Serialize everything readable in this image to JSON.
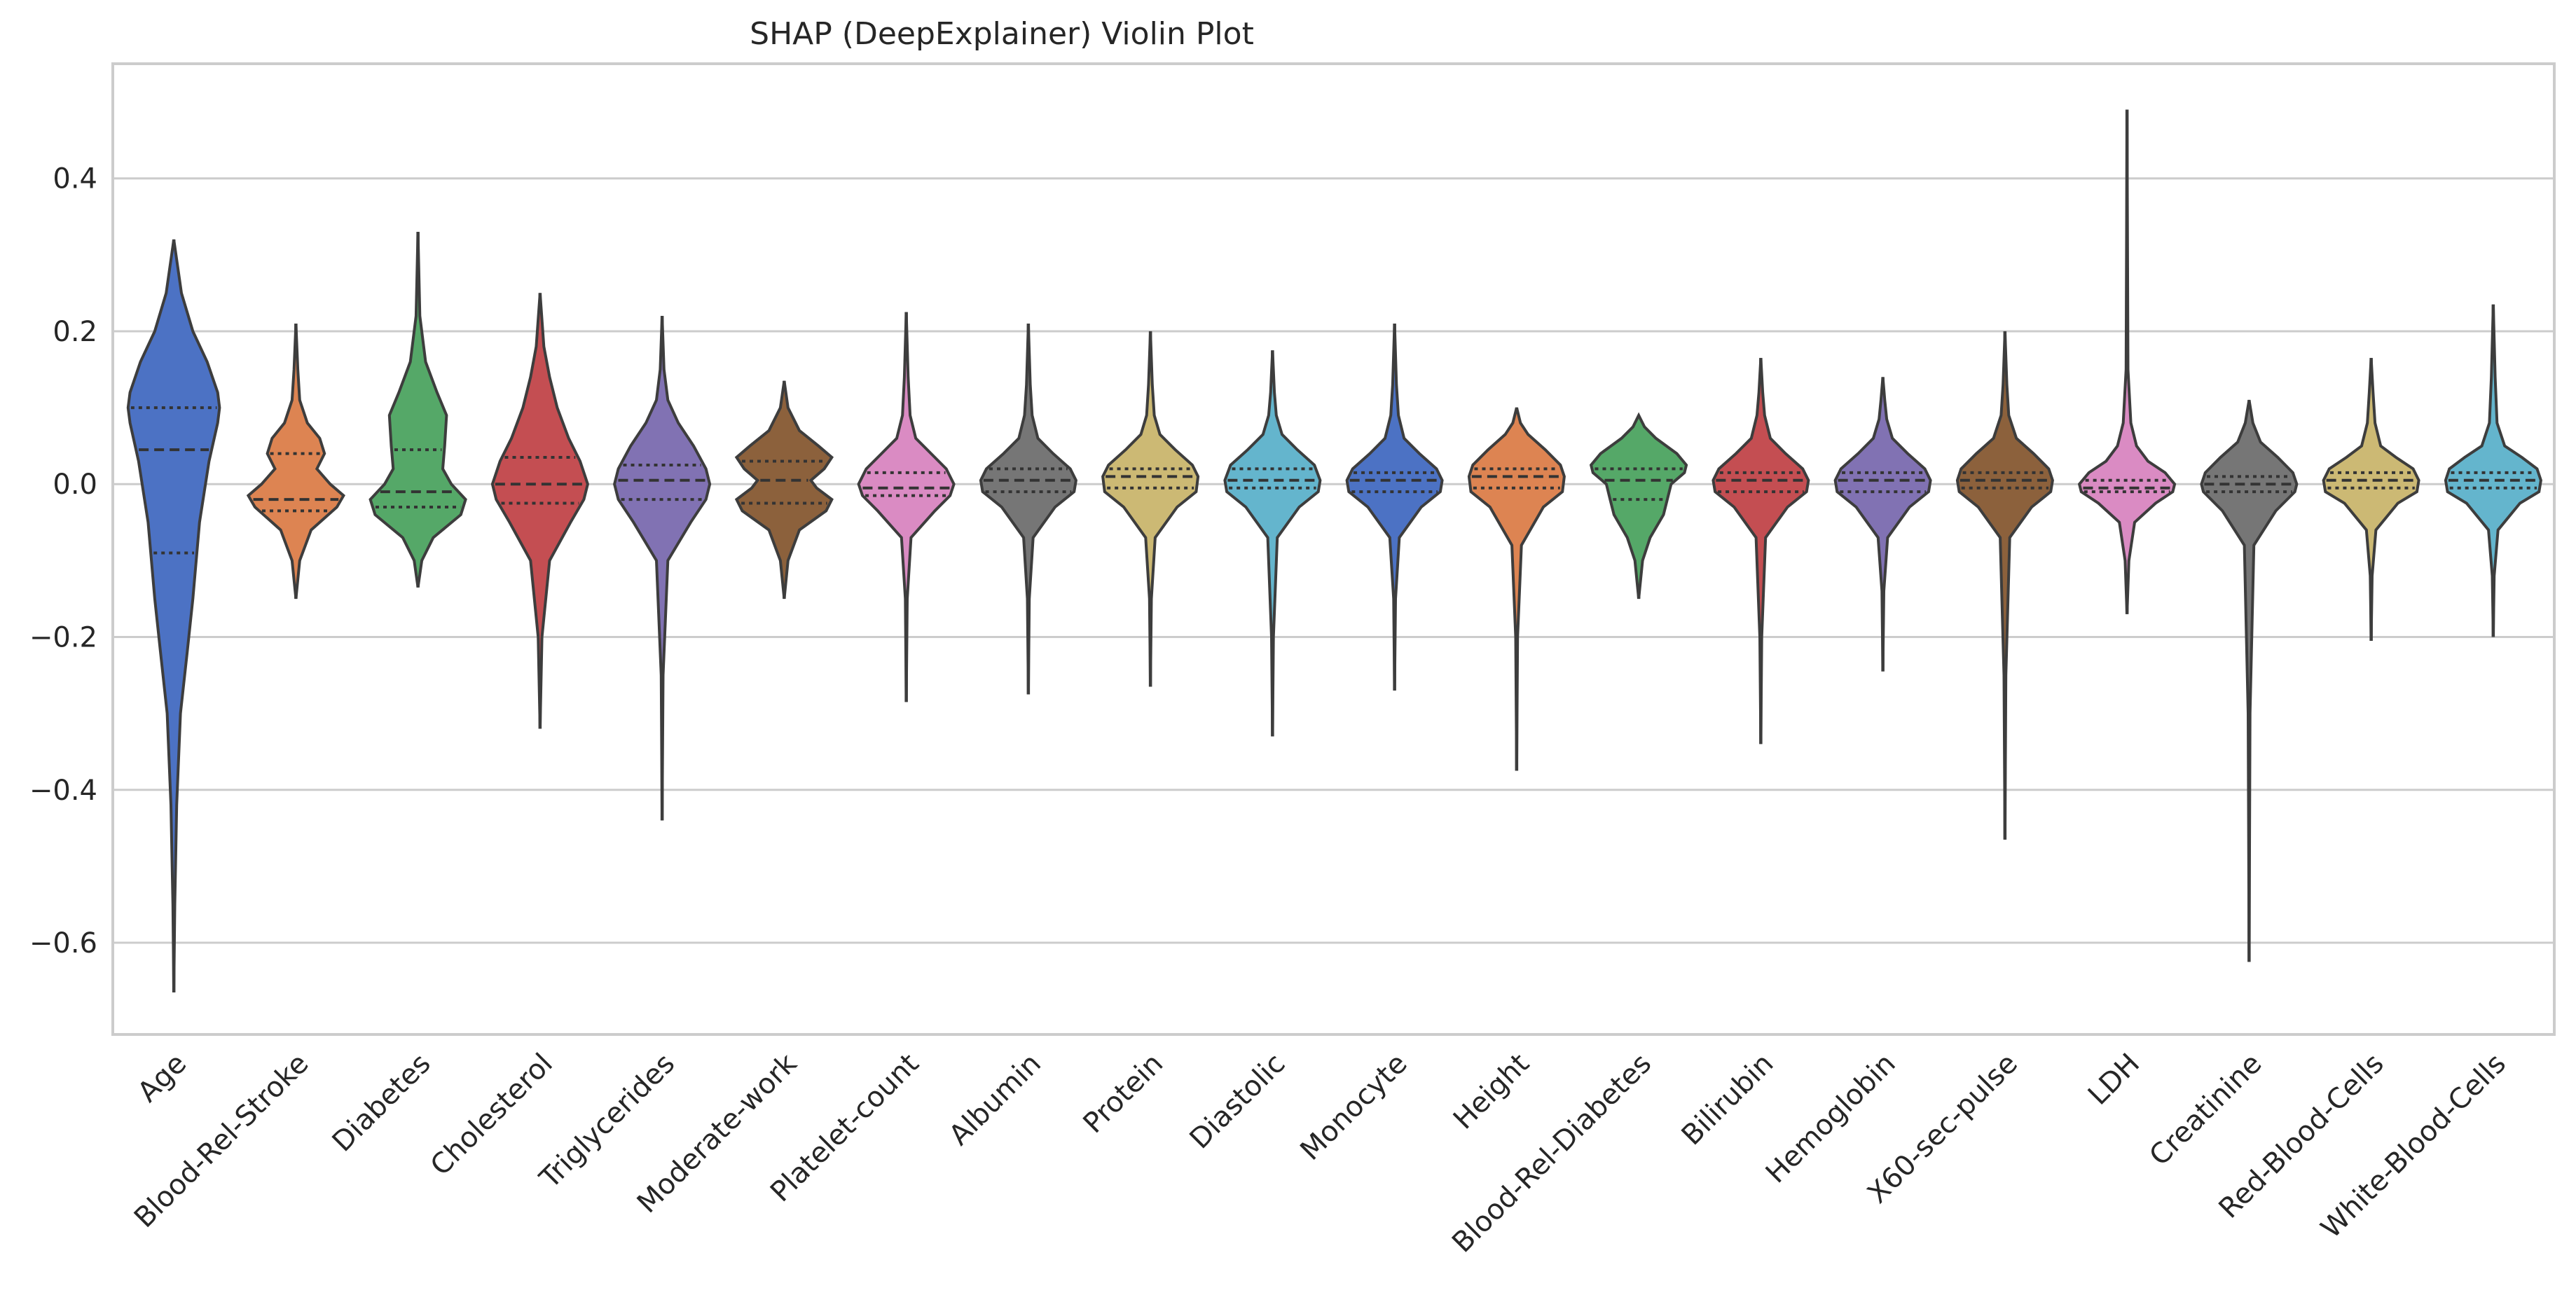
{
  "chart_data": {
    "type": "violin",
    "title": "SHAP (DeepExplainer) Violin Plot",
    "xlabel": "",
    "ylabel": "",
    "ylim": [
      -0.72,
      0.55
    ],
    "yticks": [
      0.4,
      0.2,
      0.0,
      -0.2,
      -0.4,
      -0.6
    ],
    "ytick_labels": [
      "0.4",
      "0.2",
      "0.0",
      "−0.2",
      "−0.4",
      "−0.6"
    ],
    "grid": true,
    "series": [
      {
        "name": "Age",
        "color": "#4c72c4",
        "min": -0.665,
        "max": 0.32,
        "q1": -0.09,
        "median": 0.045,
        "q3": 0.1,
        "profile": [
          [
            -0.665,
            0
          ],
          [
            -0.55,
            0.01
          ],
          [
            -0.42,
            0.03
          ],
          [
            -0.3,
            0.07
          ],
          [
            -0.22,
            0.14
          ],
          [
            -0.15,
            0.2
          ],
          [
            -0.05,
            0.27
          ],
          [
            0.03,
            0.37
          ],
          [
            0.08,
            0.46
          ],
          [
            0.1,
            0.48
          ],
          [
            0.12,
            0.46
          ],
          [
            0.16,
            0.35
          ],
          [
            0.2,
            0.2
          ],
          [
            0.25,
            0.08
          ],
          [
            0.32,
            0
          ]
        ]
      },
      {
        "name": "Blood-Rel-Stroke",
        "color": "#dd8452",
        "min": -0.15,
        "max": 0.21,
        "q1": -0.035,
        "median": -0.02,
        "q3": 0.04,
        "profile": [
          [
            -0.15,
            0
          ],
          [
            -0.1,
            0.04
          ],
          [
            -0.06,
            0.16
          ],
          [
            -0.03,
            0.43
          ],
          [
            -0.015,
            0.5
          ],
          [
            0.0,
            0.36
          ],
          [
            0.02,
            0.22
          ],
          [
            0.04,
            0.3
          ],
          [
            0.06,
            0.25
          ],
          [
            0.08,
            0.12
          ],
          [
            0.11,
            0.04
          ],
          [
            0.15,
            0.02
          ],
          [
            0.21,
            0
          ]
        ]
      },
      {
        "name": "Diabetes",
        "color": "#55a868",
        "min": -0.135,
        "max": 0.33,
        "q1": -0.03,
        "median": -0.01,
        "q3": 0.045,
        "profile": [
          [
            -0.135,
            0
          ],
          [
            -0.1,
            0.04
          ],
          [
            -0.07,
            0.16
          ],
          [
            -0.04,
            0.45
          ],
          [
            -0.02,
            0.5
          ],
          [
            0.0,
            0.35
          ],
          [
            0.02,
            0.26
          ],
          [
            0.05,
            0.28
          ],
          [
            0.09,
            0.3
          ],
          [
            0.12,
            0.2
          ],
          [
            0.16,
            0.08
          ],
          [
            0.22,
            0.02
          ],
          [
            0.33,
            0
          ]
        ]
      },
      {
        "name": "Cholesterol",
        "color": "#c44e52",
        "min": -0.32,
        "max": 0.25,
        "q1": -0.025,
        "median": 0.0,
        "q3": 0.035,
        "profile": [
          [
            -0.32,
            0
          ],
          [
            -0.2,
            0.02
          ],
          [
            -0.1,
            0.1
          ],
          [
            -0.05,
            0.32
          ],
          [
            -0.02,
            0.46
          ],
          [
            0.0,
            0.5
          ],
          [
            0.03,
            0.42
          ],
          [
            0.06,
            0.3
          ],
          [
            0.1,
            0.18
          ],
          [
            0.14,
            0.1
          ],
          [
            0.18,
            0.04
          ],
          [
            0.25,
            0
          ]
        ]
      },
      {
        "name": "Triglycerides",
        "color": "#8172b3",
        "min": -0.44,
        "max": 0.22,
        "q1": -0.02,
        "median": 0.005,
        "q3": 0.025,
        "profile": [
          [
            -0.44,
            0
          ],
          [
            -0.25,
            0.01
          ],
          [
            -0.1,
            0.06
          ],
          [
            -0.05,
            0.3
          ],
          [
            -0.02,
            0.46
          ],
          [
            0.0,
            0.5
          ],
          [
            0.02,
            0.46
          ],
          [
            0.05,
            0.33
          ],
          [
            0.08,
            0.17
          ],
          [
            0.11,
            0.06
          ],
          [
            0.15,
            0.02
          ],
          [
            0.22,
            0
          ]
        ]
      },
      {
        "name": "Moderate-work",
        "color": "#8c613c",
        "min": -0.15,
        "max": 0.135,
        "q1": -0.025,
        "median": 0.005,
        "q3": 0.03,
        "profile": [
          [
            -0.15,
            0
          ],
          [
            -0.1,
            0.04
          ],
          [
            -0.06,
            0.16
          ],
          [
            -0.035,
            0.44
          ],
          [
            -0.02,
            0.5
          ],
          [
            -0.005,
            0.34
          ],
          [
            0.005,
            0.28
          ],
          [
            0.02,
            0.42
          ],
          [
            0.035,
            0.5
          ],
          [
            0.05,
            0.36
          ],
          [
            0.07,
            0.16
          ],
          [
            0.1,
            0.04
          ],
          [
            0.135,
            0
          ]
        ]
      },
      {
        "name": "Platelet-count",
        "color": "#da8bc3",
        "min": -0.285,
        "max": 0.225,
        "q1": -0.015,
        "median": -0.005,
        "q3": 0.015,
        "profile": [
          [
            -0.285,
            0
          ],
          [
            -0.15,
            0.01
          ],
          [
            -0.07,
            0.05
          ],
          [
            -0.035,
            0.3
          ],
          [
            -0.015,
            0.46
          ],
          [
            0.0,
            0.5
          ],
          [
            0.02,
            0.42
          ],
          [
            0.04,
            0.26
          ],
          [
            0.06,
            0.1
          ],
          [
            0.09,
            0.04
          ],
          [
            0.14,
            0.02
          ],
          [
            0.225,
            0
          ]
        ]
      },
      {
        "name": "Albumin",
        "color": "#767676",
        "min": -0.275,
        "max": 0.21,
        "q1": -0.01,
        "median": 0.005,
        "q3": 0.02,
        "profile": [
          [
            -0.275,
            0
          ],
          [
            -0.15,
            0.01
          ],
          [
            -0.07,
            0.05
          ],
          [
            -0.03,
            0.28
          ],
          [
            -0.01,
            0.48
          ],
          [
            0.005,
            0.5
          ],
          [
            0.02,
            0.44
          ],
          [
            0.04,
            0.26
          ],
          [
            0.06,
            0.1
          ],
          [
            0.09,
            0.04
          ],
          [
            0.13,
            0.02
          ],
          [
            0.21,
            0
          ]
        ]
      },
      {
        "name": "Protein",
        "color": "#ccb974",
        "min": -0.265,
        "max": 0.2,
        "q1": -0.005,
        "median": 0.01,
        "q3": 0.02,
        "profile": [
          [
            -0.265,
            0
          ],
          [
            -0.15,
            0.01
          ],
          [
            -0.07,
            0.05
          ],
          [
            -0.03,
            0.28
          ],
          [
            -0.01,
            0.48
          ],
          [
            0.01,
            0.5
          ],
          [
            0.025,
            0.44
          ],
          [
            0.045,
            0.26
          ],
          [
            0.065,
            0.1
          ],
          [
            0.09,
            0.04
          ],
          [
            0.13,
            0.02
          ],
          [
            0.2,
            0
          ]
        ]
      },
      {
        "name": "Diastolic",
        "color": "#64b5cd",
        "min": -0.33,
        "max": 0.175,
        "q1": -0.005,
        "median": 0.005,
        "q3": 0.02,
        "profile": [
          [
            -0.33,
            0
          ],
          [
            -0.2,
            0.01
          ],
          [
            -0.07,
            0.05
          ],
          [
            -0.03,
            0.28
          ],
          [
            -0.01,
            0.48
          ],
          [
            0.005,
            0.5
          ],
          [
            0.025,
            0.44
          ],
          [
            0.045,
            0.26
          ],
          [
            0.065,
            0.1
          ],
          [
            0.09,
            0.04
          ],
          [
            0.12,
            0.02
          ],
          [
            0.175,
            0
          ]
        ]
      },
      {
        "name": "Monocyte",
        "color": "#4c72c4",
        "min": -0.27,
        "max": 0.21,
        "q1": -0.01,
        "median": 0.005,
        "q3": 0.015,
        "profile": [
          [
            -0.27,
            0
          ],
          [
            -0.15,
            0.01
          ],
          [
            -0.07,
            0.05
          ],
          [
            -0.03,
            0.28
          ],
          [
            -0.01,
            0.48
          ],
          [
            0.005,
            0.5
          ],
          [
            0.02,
            0.44
          ],
          [
            0.04,
            0.26
          ],
          [
            0.06,
            0.1
          ],
          [
            0.09,
            0.04
          ],
          [
            0.13,
            0.02
          ],
          [
            0.21,
            0
          ]
        ]
      },
      {
        "name": "Height",
        "color": "#dd8452",
        "min": -0.375,
        "max": 0.1,
        "q1": -0.005,
        "median": 0.01,
        "q3": 0.02,
        "profile": [
          [
            -0.375,
            0
          ],
          [
            -0.2,
            0.01
          ],
          [
            -0.08,
            0.05
          ],
          [
            -0.03,
            0.28
          ],
          [
            -0.01,
            0.48
          ],
          [
            0.01,
            0.5
          ],
          [
            0.025,
            0.46
          ],
          [
            0.045,
            0.3
          ],
          [
            0.065,
            0.12
          ],
          [
            0.08,
            0.04
          ],
          [
            0.1,
            0
          ]
        ]
      },
      {
        "name": "Blood-Rel-Diabetes",
        "color": "#55a868",
        "min": -0.15,
        "max": 0.09,
        "q1": -0.02,
        "median": 0.005,
        "q3": 0.02,
        "profile": [
          [
            -0.15,
            0
          ],
          [
            -0.1,
            0.04
          ],
          [
            -0.07,
            0.12
          ],
          [
            -0.04,
            0.26
          ],
          [
            -0.02,
            0.3
          ],
          [
            0.0,
            0.34
          ],
          [
            0.015,
            0.48
          ],
          [
            0.025,
            0.5
          ],
          [
            0.04,
            0.4
          ],
          [
            0.06,
            0.18
          ],
          [
            0.075,
            0.06
          ],
          [
            0.09,
            0
          ]
        ]
      },
      {
        "name": "Bilirubin",
        "color": "#c44e52",
        "min": -0.34,
        "max": 0.165,
        "q1": -0.01,
        "median": 0.005,
        "q3": 0.015,
        "profile": [
          [
            -0.34,
            0
          ],
          [
            -0.2,
            0.01
          ],
          [
            -0.07,
            0.05
          ],
          [
            -0.03,
            0.28
          ],
          [
            -0.01,
            0.48
          ],
          [
            0.005,
            0.5
          ],
          [
            0.02,
            0.44
          ],
          [
            0.04,
            0.26
          ],
          [
            0.06,
            0.1
          ],
          [
            0.09,
            0.04
          ],
          [
            0.12,
            0.02
          ],
          [
            0.165,
            0
          ]
        ]
      },
      {
        "name": "Hemoglobin",
        "color": "#8172b3",
        "min": -0.245,
        "max": 0.14,
        "q1": -0.01,
        "median": 0.005,
        "q3": 0.015,
        "profile": [
          [
            -0.245,
            0
          ],
          [
            -0.14,
            0.01
          ],
          [
            -0.07,
            0.05
          ],
          [
            -0.03,
            0.28
          ],
          [
            -0.01,
            0.48
          ],
          [
            0.005,
            0.5
          ],
          [
            0.02,
            0.44
          ],
          [
            0.04,
            0.26
          ],
          [
            0.06,
            0.1
          ],
          [
            0.085,
            0.04
          ],
          [
            0.11,
            0.02
          ],
          [
            0.14,
            0
          ]
        ]
      },
      {
        "name": "X60-sec-pulse",
        "color": "#8c613c",
        "min": -0.465,
        "max": 0.2,
        "q1": -0.005,
        "median": 0.005,
        "q3": 0.015,
        "profile": [
          [
            -0.465,
            0
          ],
          [
            -0.25,
            0.01
          ],
          [
            -0.07,
            0.05
          ],
          [
            -0.03,
            0.28
          ],
          [
            -0.01,
            0.48
          ],
          [
            0.005,
            0.5
          ],
          [
            0.02,
            0.46
          ],
          [
            0.04,
            0.3
          ],
          [
            0.06,
            0.12
          ],
          [
            0.09,
            0.04
          ],
          [
            0.13,
            0.02
          ],
          [
            0.2,
            0
          ]
        ]
      },
      {
        "name": "LDH",
        "color": "#da8bc3",
        "min": -0.17,
        "max": 0.49,
        "q1": -0.01,
        "median": -0.005,
        "q3": 0.005,
        "profile": [
          [
            -0.17,
            0
          ],
          [
            -0.1,
            0.02
          ],
          [
            -0.05,
            0.08
          ],
          [
            -0.025,
            0.3
          ],
          [
            -0.01,
            0.48
          ],
          [
            0.0,
            0.5
          ],
          [
            0.015,
            0.4
          ],
          [
            0.03,
            0.22
          ],
          [
            0.05,
            0.1
          ],
          [
            0.08,
            0.04
          ],
          [
            0.15,
            0.01
          ],
          [
            0.49,
            0
          ]
        ]
      },
      {
        "name": "Creatinine",
        "color": "#767676",
        "min": -0.625,
        "max": 0.11,
        "q1": -0.01,
        "median": 0.0,
        "q3": 0.01,
        "profile": [
          [
            -0.625,
            0
          ],
          [
            -0.3,
            0.01
          ],
          [
            -0.08,
            0.05
          ],
          [
            -0.035,
            0.28
          ],
          [
            -0.01,
            0.48
          ],
          [
            0.0,
            0.5
          ],
          [
            0.015,
            0.46
          ],
          [
            0.035,
            0.3
          ],
          [
            0.055,
            0.12
          ],
          [
            0.08,
            0.04
          ],
          [
            0.11,
            0
          ]
        ]
      },
      {
        "name": "Red-Blood-Cells",
        "color": "#ccb974",
        "min": -0.205,
        "max": 0.165,
        "q1": -0.005,
        "median": 0.005,
        "q3": 0.015,
        "profile": [
          [
            -0.205,
            0
          ],
          [
            -0.12,
            0.01
          ],
          [
            -0.06,
            0.05
          ],
          [
            -0.025,
            0.28
          ],
          [
            -0.01,
            0.48
          ],
          [
            0.005,
            0.5
          ],
          [
            0.02,
            0.44
          ],
          [
            0.035,
            0.26
          ],
          [
            0.05,
            0.1
          ],
          [
            0.08,
            0.04
          ],
          [
            0.12,
            0.02
          ],
          [
            0.165,
            0
          ]
        ]
      },
      {
        "name": "White-Blood-Cells",
        "color": "#64b5cd",
        "min": -0.2,
        "max": 0.235,
        "q1": -0.005,
        "median": 0.005,
        "q3": 0.015,
        "profile": [
          [
            -0.2,
            0
          ],
          [
            -0.12,
            0.01
          ],
          [
            -0.06,
            0.05
          ],
          [
            -0.025,
            0.28
          ],
          [
            -0.01,
            0.48
          ],
          [
            0.005,
            0.5
          ],
          [
            0.02,
            0.46
          ],
          [
            0.035,
            0.3
          ],
          [
            0.05,
            0.12
          ],
          [
            0.08,
            0.04
          ],
          [
            0.14,
            0.02
          ],
          [
            0.235,
            0
          ]
        ]
      }
    ]
  }
}
